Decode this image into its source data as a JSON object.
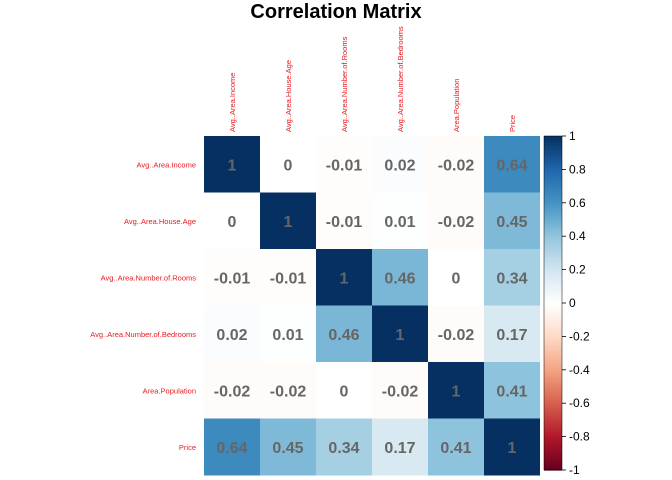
{
  "chart_data": {
    "type": "heatmap",
    "title": "Correlation Matrix",
    "variables": [
      "Avg..Area.Income",
      "Avg..Area.House.Age",
      "Avg..Area.Number.of.Rooms",
      "Avg..Area.Number.of.Bedrooms",
      "Area.Population",
      "Price"
    ],
    "values": [
      [
        1,
        0,
        -0.01,
        0.02,
        -0.02,
        0.64
      ],
      [
        0,
        1,
        -0.01,
        0.01,
        -0.02,
        0.45
      ],
      [
        -0.01,
        -0.01,
        1,
        0.46,
        0,
        0.34
      ],
      [
        0.02,
        0.01,
        0.46,
        1,
        -0.02,
        0.17
      ],
      [
        -0.02,
        -0.02,
        0,
        -0.02,
        1,
        0.41
      ],
      [
        0.64,
        0.45,
        0.34,
        0.17,
        0.41,
        1
      ]
    ],
    "colorbar": {
      "range": [
        -1,
        1
      ],
      "ticks": [
        "-1",
        "-0.8",
        "-0.6",
        "-0.4",
        "-0.2",
        "0",
        "0.2",
        "0.4",
        "0.6",
        "0.8",
        "1"
      ],
      "colors": [
        "#67001F",
        "#B2182B",
        "#D6604D",
        "#F4A582",
        "#FDDBC7",
        "#FFFFFF",
        "#D1E5F0",
        "#92C5DE",
        "#4393C3",
        "#2166AC",
        "#053061"
      ]
    },
    "label_color": "#E8191F",
    "cell_text_color": "#666666"
  }
}
